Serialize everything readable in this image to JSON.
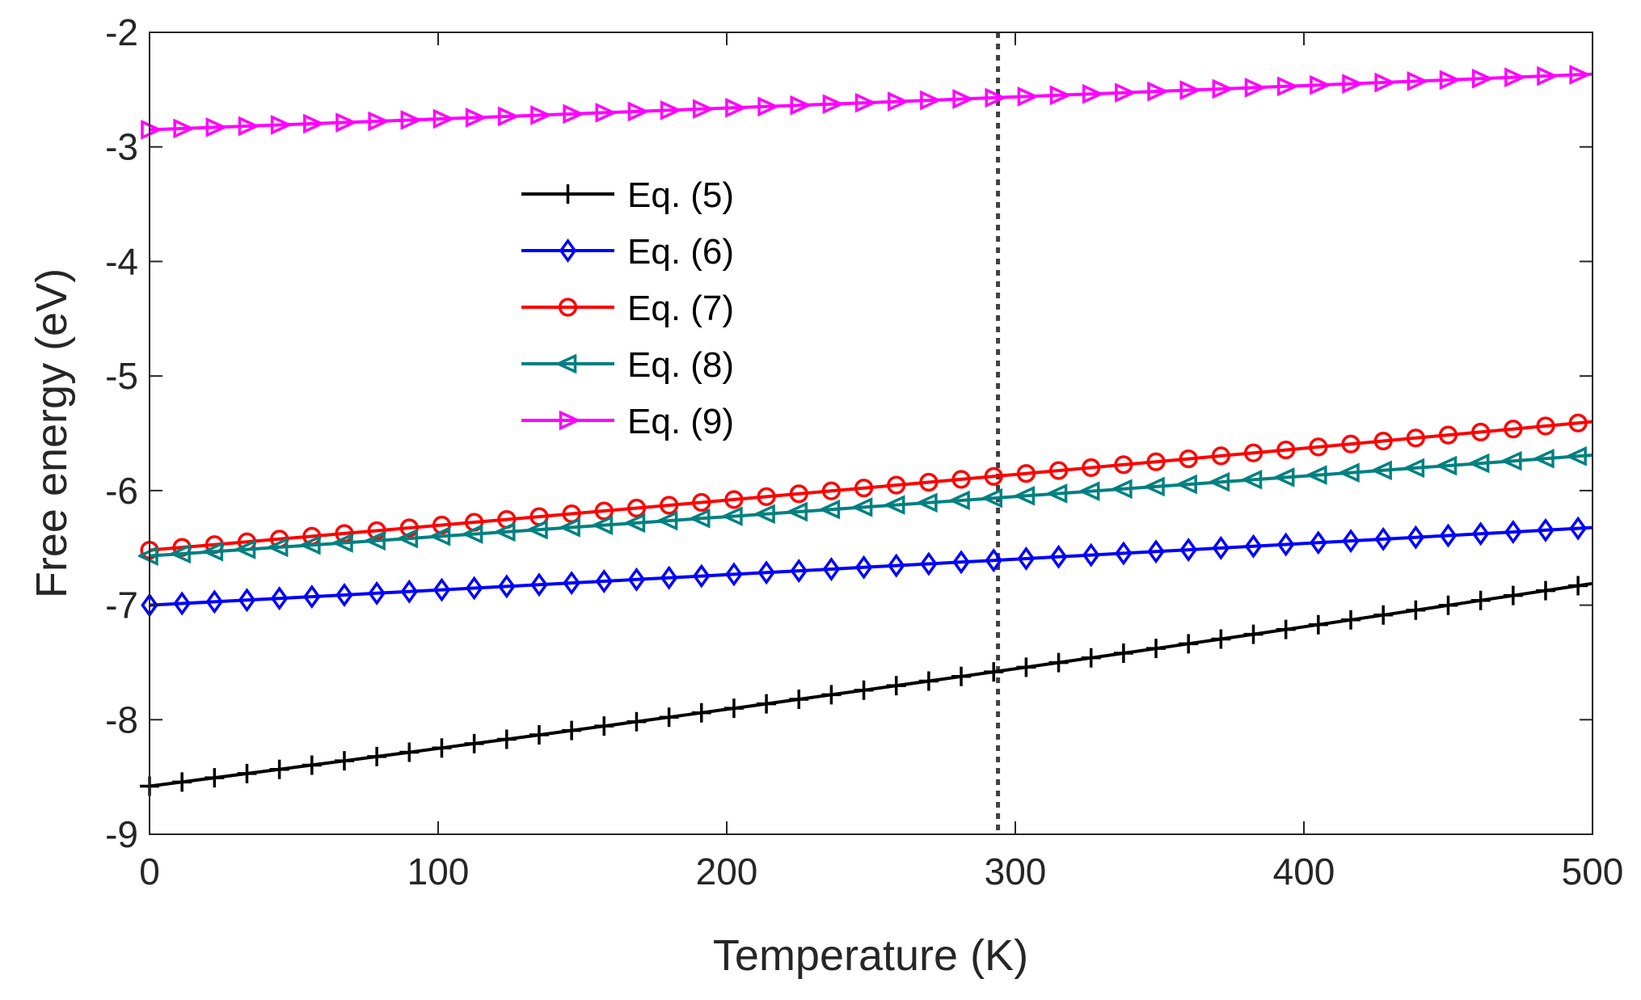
{
  "chart_data": {
    "type": "line",
    "title": "",
    "xlabel": "Temperature (K)",
    "ylabel": "Free energy (eV)",
    "xlim": [
      0,
      500
    ],
    "ylim": [
      -9,
      -2
    ],
    "xticks": [
      0,
      100,
      200,
      300,
      400,
      500
    ],
    "yticks": [
      -9,
      -8,
      -7,
      -6,
      -5,
      -4,
      -3,
      -2
    ],
    "grid": false,
    "legend_location": "upper-left-center",
    "reference_line": {
      "x": 294,
      "style": "dotted",
      "color": "#404040"
    },
    "x_samples": {
      "start": 0,
      "end": 495,
      "count": 45
    },
    "series": [
      {
        "name": "Eq. (5)",
        "color": "#000000",
        "marker": "plus",
        "start": -8.58,
        "end": -6.83,
        "curvature": 0.15
      },
      {
        "name": "Eq. (6)",
        "color": "#0000ff",
        "marker": "diamond",
        "start": -7.0,
        "end": -6.33,
        "curvature": 0.02
      },
      {
        "name": "Eq. (7)",
        "color": "#ff0000",
        "marker": "circle",
        "start": -6.52,
        "end": -5.41,
        "curvature": 0.05
      },
      {
        "name": "Eq. (8)",
        "color": "#008080",
        "marker": "triangle-left",
        "start": -6.57,
        "end": -5.7,
        "curvature": 0.04
      },
      {
        "name": "Eq. (9)",
        "color": "#ff00ff",
        "marker": "triangle-right",
        "start": -2.85,
        "end": -2.37,
        "curvature": 0.02
      }
    ]
  }
}
